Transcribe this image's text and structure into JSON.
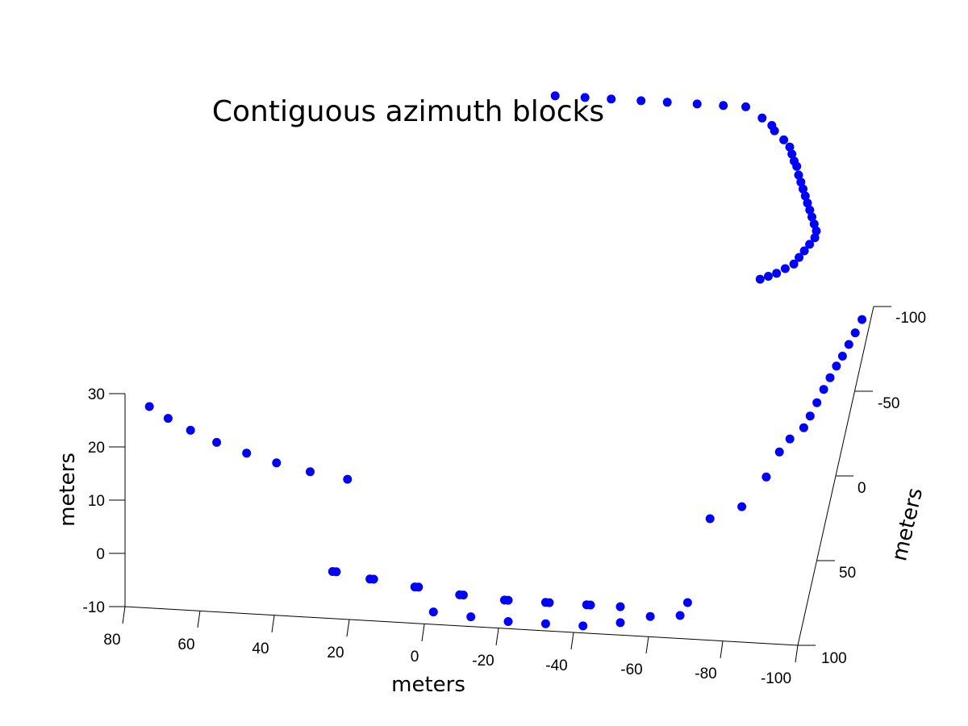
{
  "chart_data": {
    "type": "scatter",
    "title": "Contiguous azimuth blocks",
    "xlabel": "meters",
    "ylabel": "meters",
    "zlabel": "meters",
    "marker_color": "#0000ff",
    "x_ticks": [
      "80",
      "60",
      "40",
      "20",
      "0",
      "-20",
      "-40",
      "-60",
      "-80",
      "-100"
    ],
    "y_ticks": [
      "-100",
      "-50",
      "0",
      "50",
      "100"
    ],
    "z_ticks": [
      "30",
      "20",
      "10",
      "0",
      "-10"
    ],
    "series": [
      {
        "points": [
          [
            75,
            85,
            23
          ],
          [
            70,
            85,
            21
          ],
          [
            64,
            85,
            19
          ],
          [
            57,
            85,
            17
          ],
          [
            49,
            85,
            15.3
          ],
          [
            41,
            85,
            13.8
          ],
          [
            32,
            85,
            12.5
          ],
          [
            22,
            85,
            11.5
          ],
          [
            26,
            85,
            -6
          ],
          [
            25,
            85,
            -6
          ],
          [
            16,
            85,
            -7
          ],
          [
            15,
            85,
            -7
          ],
          [
            4,
            85,
            -8
          ],
          [
            3,
            85,
            -8
          ],
          [
            -8,
            85,
            -9
          ],
          [
            -9,
            85,
            -9
          ],
          [
            -20,
            85,
            -9.5
          ],
          [
            -21,
            85,
            -9.5
          ],
          [
            -31,
            85,
            -9.5
          ],
          [
            -32,
            85,
            -9.5
          ],
          [
            -42,
            85,
            -9.5
          ],
          [
            -43,
            85,
            -9.5
          ],
          [
            -51,
            85,
            -9.5
          ],
          [
            -59,
            85,
            -11
          ],
          [
            -67,
            85,
            -10.5
          ],
          [
            -69,
            85,
            -8
          ],
          [
            -1,
            85,
            -12.5
          ],
          [
            -11,
            85,
            -13
          ],
          [
            -21,
            85,
            -13.5
          ],
          [
            -31,
            85,
            -13.5
          ],
          [
            -41,
            85,
            -13.5
          ],
          [
            -51,
            85,
            -12.5
          ],
          [
            -75,
            85,
            8
          ],
          [
            -83,
            80,
            9
          ],
          [
            -88,
            65,
            10
          ],
          [
            -90,
            50,
            10
          ],
          [
            -92,
            42,
            10
          ],
          [
            -95,
            35,
            10
          ],
          [
            -96,
            28,
            10
          ],
          [
            -97,
            20,
            10
          ],
          [
            -98,
            12,
            10
          ],
          [
            -99,
            5,
            10
          ],
          [
            -100,
            -2,
            10
          ],
          [
            -101,
            -8,
            10
          ],
          [
            -102,
            -15,
            10
          ],
          [
            -103,
            -22,
            10
          ],
          [
            -104,
            -30,
            10
          ],
          [
            -16,
            -88,
            30
          ],
          [
            -24,
            -88,
            30
          ],
          [
            -31,
            -88,
            30
          ],
          [
            -39,
            -88,
            30
          ],
          [
            -46,
            -88,
            30
          ],
          [
            -54,
            -88,
            30
          ],
          [
            -61,
            -88,
            30
          ],
          [
            -67,
            -88,
            30
          ],
          [
            -72,
            -82,
            30
          ],
          [
            -75,
            -78,
            30
          ],
          [
            -76,
            -75,
            30
          ],
          [
            -79,
            -70,
            30
          ],
          [
            -81,
            -66,
            30
          ],
          [
            -82,
            -62,
            30
          ],
          [
            -83,
            -58,
            30
          ],
          [
            -84,
            -55,
            30
          ],
          [
            -85,
            -50,
            30
          ],
          [
            -86,
            -46,
            30
          ],
          [
            -87,
            -42,
            30
          ],
          [
            -88,
            -38,
            30
          ],
          [
            -89,
            -34,
            30
          ],
          [
            -90,
            -30,
            30
          ],
          [
            -91,
            -26,
            30
          ],
          [
            -92,
            -22,
            30
          ],
          [
            -93,
            -18,
            30
          ],
          [
            -93,
            -14,
            30
          ],
          [
            -92,
            -10,
            30
          ],
          [
            -91,
            -6,
            30
          ],
          [
            -90,
            -2,
            30
          ],
          [
            -89,
            2,
            30
          ],
          [
            -87,
            5,
            30
          ],
          [
            -85,
            8,
            30
          ],
          [
            -83,
            10,
            30
          ],
          [
            -81,
            12,
            30
          ]
        ]
      }
    ]
  }
}
